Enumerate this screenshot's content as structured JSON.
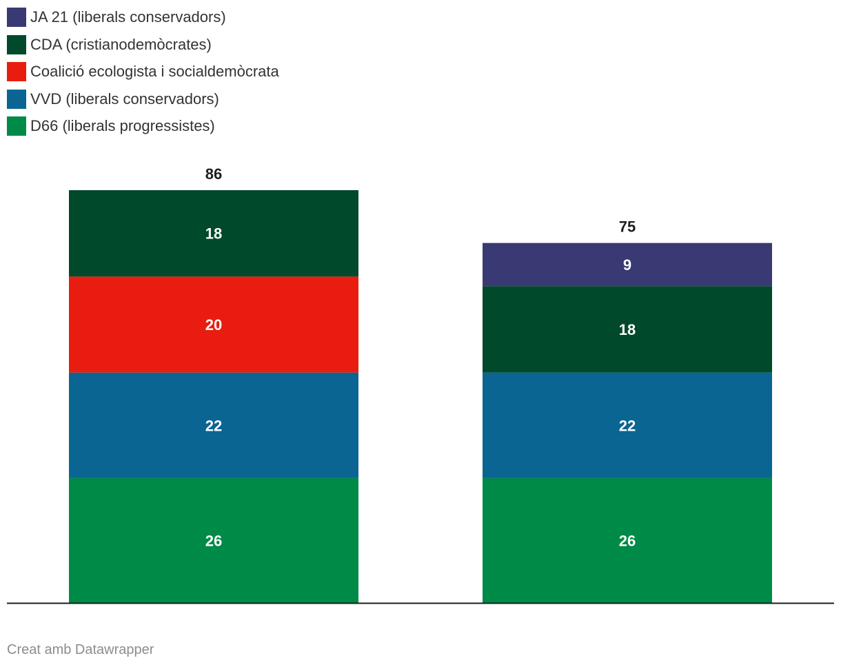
{
  "chart_data": {
    "type": "bar",
    "stacked": true,
    "categories": [
      "",
      ""
    ],
    "series": [
      {
        "name": "D66 (liberals progressistes)",
        "color": "#008a47",
        "values": [
          26,
          26
        ]
      },
      {
        "name": "VVD (liberals conservadors)",
        "color": "#0a6592",
        "values": [
          22,
          22
        ]
      },
      {
        "name": "Coalició ecologista i socialdemòcrata",
        "color": "#e81d10",
        "values": [
          20,
          0
        ]
      },
      {
        "name": "CDA (cristianodemòcrates)",
        "color": "#00492a",
        "values": [
          18,
          18
        ]
      },
      {
        "name": "JA 21 (liberals conservadors)",
        "color": "#393a73",
        "values": [
          0,
          9
        ]
      }
    ],
    "totals": [
      86,
      75
    ],
    "title": "",
    "xlabel": "",
    "ylabel": "",
    "ylim": [
      0,
      86
    ],
    "grid": false,
    "legend_position": "top-left"
  },
  "legend": [
    {
      "label": "JA 21 (liberals conservadors)",
      "color": "#393a73"
    },
    {
      "label": "CDA (cristianodemòcrates)",
      "color": "#00492a"
    },
    {
      "label": "Coalició ecologista i socialdemòcrata",
      "color": "#e81d10"
    },
    {
      "label": "VVD (liberals conservadors)",
      "color": "#0a6592"
    },
    {
      "label": "D66 (liberals progressistes)",
      "color": "#008a47"
    }
  ],
  "footer": {
    "credit": "Creat amb Datawrapper"
  }
}
